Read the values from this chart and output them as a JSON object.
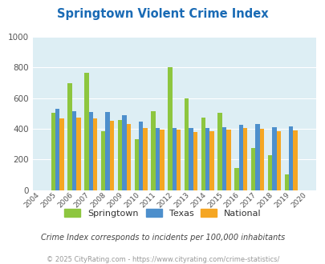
{
  "title": "Springtown Violent Crime Index",
  "years": [
    2004,
    2005,
    2006,
    2007,
    2008,
    2009,
    2010,
    2011,
    2012,
    2013,
    2014,
    2015,
    2016,
    2017,
    2018,
    2019,
    2020
  ],
  "springtown": [
    null,
    505,
    700,
    765,
    385,
    460,
    330,
    515,
    805,
    600,
    475,
    505,
    145,
    275,
    230,
    100,
    null
  ],
  "texas": [
    null,
    530,
    515,
    510,
    510,
    490,
    445,
    405,
    405,
    405,
    405,
    410,
    425,
    430,
    410,
    415,
    null
  ],
  "national": [
    null,
    470,
    475,
    470,
    455,
    432,
    408,
    395,
    397,
    380,
    383,
    397,
    403,
    400,
    385,
    390,
    null
  ],
  "springtown_color": "#8dc63f",
  "texas_color": "#4d8fcc",
  "national_color": "#f5a623",
  "bg_color": "#ddeef4",
  "ylim": [
    0,
    1000
  ],
  "yticks": [
    0,
    200,
    400,
    600,
    800,
    1000
  ],
  "subtitle": "Crime Index corresponds to incidents per 100,000 inhabitants",
  "footer": "© 2025 CityRating.com - https://www.cityrating.com/crime-statistics/",
  "title_color": "#1a6bb5",
  "subtitle_color": "#444444",
  "footer_color": "#999999",
  "legend_labels": [
    "Springtown",
    "Texas",
    "National"
  ]
}
